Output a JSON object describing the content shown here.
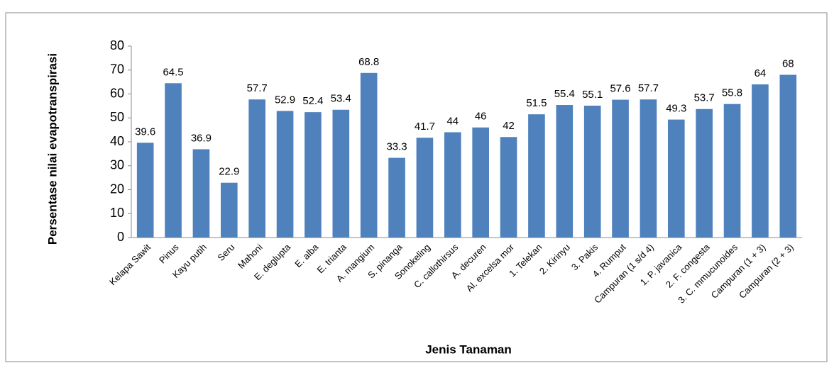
{
  "chart_data": {
    "type": "bar",
    "x_label": "Jenis Tanaman",
    "y_label": "Persentase nilai evapotranspirasi",
    "categories": [
      "Kelapa Sawit",
      "Pinus",
      "Kayu putih",
      "Seru",
      "Mahoni",
      "E. deglupta",
      "E. alba",
      "E. trianta",
      "A. mangium",
      "S. pinanga",
      "Sonokeling",
      "C. callothirsus",
      "A. decuren",
      "Al. excelsa mor",
      "1. Telekan",
      "2. Kirinyu",
      "3. Pakis",
      "4. Rumput",
      "Campuran (1 s/d 4)",
      "1. P. javanica",
      "2. F. congesta",
      "3. C. mmucunoides",
      "Campuran (1 + 3)",
      "Campuran (2 + 3)"
    ],
    "values": [
      39.6,
      64.5,
      36.9,
      22.9,
      57.7,
      52.9,
      52.4,
      53.4,
      68.8,
      33.3,
      41.7,
      44,
      46,
      42,
      51.5,
      55.4,
      55.1,
      57.6,
      57.7,
      49.3,
      53.7,
      55.8,
      64,
      68
    ],
    "color": "#4f81bd",
    "ylim": [
      0,
      80
    ],
    "yticks": [
      0,
      10,
      20,
      30,
      40,
      50,
      60,
      70,
      80
    ],
    "grid": false
  }
}
